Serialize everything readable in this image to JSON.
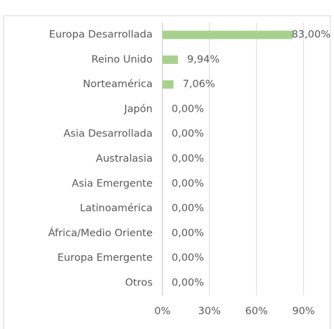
{
  "chart_data": {
    "type": "bar",
    "orientation": "horizontal",
    "categories": [
      "Europa Desarrollada",
      "Reino Unido",
      "Norteamérica",
      "Japón",
      "Asia Desarrollada",
      "Australasia",
      "Asia Emergente",
      "Latinoamérica",
      "África/Medio Oriente",
      "Europa Emergente",
      "Otros"
    ],
    "values": [
      83.0,
      9.94,
      7.06,
      0,
      0,
      0,
      0,
      0,
      0,
      0,
      0
    ],
    "value_labels": [
      "83,00%",
      "9,94%",
      "7,06%",
      "0,00%",
      "0,00%",
      "0,00%",
      "0,00%",
      "0,00%",
      "0,00%",
      "0,00%",
      "0,00%"
    ],
    "color": "#a9d18e",
    "xlim": [
      0,
      100
    ],
    "xticks": [
      {
        "value": 0,
        "label": "0%"
      },
      {
        "value": 30,
        "label": "30%"
      },
      {
        "value": 60,
        "label": "60%"
      },
      {
        "value": 90,
        "label": "90%"
      }
    ],
    "grid": true
  }
}
